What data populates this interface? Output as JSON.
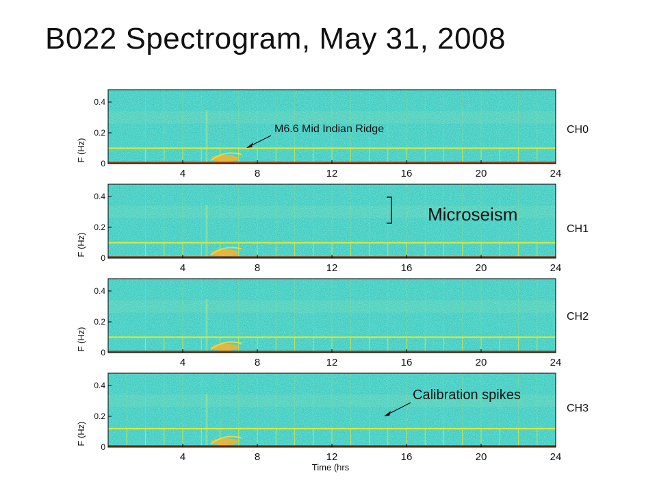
{
  "title": "B022 Spectrogram, May 31, 2008",
  "annotations": {
    "earthquake": "M6.6 Mid Indian Ridge",
    "microseism": "Microseism",
    "calibration": "Calibration spikes"
  },
  "colors": {
    "background": "#3cc8bd",
    "speckle_dark": "#2aa8e0",
    "speckle_light": "#7be5a8",
    "calibration_line": "#d9e83a",
    "event": "#f2b233",
    "baseline": "#8a3a1a"
  },
  "chart_data": [
    {
      "type": "heatmap",
      "channel": "CH0",
      "xlabel": "",
      "ylabel": "F (Hz)",
      "xlim": [
        0,
        24
      ],
      "ylim": [
        0,
        0.48
      ],
      "xticks": [
        4,
        8,
        12,
        16,
        20,
        24
      ],
      "yticks": [
        0,
        0.2,
        0.4
      ],
      "calibration_line_freq": 0.1,
      "event_time": [
        5.5,
        7.0
      ],
      "calibration_spike_times": [
        2,
        3,
        4,
        5,
        6,
        7,
        8,
        9,
        10,
        11,
        12,
        13,
        14,
        15,
        16,
        17,
        18,
        19,
        20,
        21,
        22,
        23
      ]
    },
    {
      "type": "heatmap",
      "channel": "CH1",
      "xlabel": "",
      "ylabel": "F (Hz)",
      "xlim": [
        0,
        24
      ],
      "ylim": [
        0,
        0.48
      ],
      "xticks": [
        4,
        8,
        12,
        16,
        20,
        24
      ],
      "yticks": [
        0,
        0.2,
        0.4
      ],
      "calibration_line_freq": 0.1,
      "event_time": [
        5.5,
        7.0
      ],
      "calibration_spike_times": [
        2,
        3,
        4,
        5,
        6,
        7,
        8,
        9,
        10,
        11,
        12,
        13,
        14,
        15,
        16,
        17,
        18,
        19,
        20,
        21,
        22,
        23
      ]
    },
    {
      "type": "heatmap",
      "channel": "CH2",
      "xlabel": "",
      "ylabel": "F (Hz)",
      "xlim": [
        0,
        24
      ],
      "ylim": [
        0,
        0.48
      ],
      "xticks": [
        4,
        8,
        12,
        16,
        20,
        24
      ],
      "yticks": [
        0,
        0.2,
        0.4
      ],
      "calibration_line_freq": 0.1,
      "event_time": [
        5.5,
        7.0
      ],
      "calibration_spike_times": [
        2,
        3,
        4,
        5,
        6,
        7,
        8,
        9,
        10,
        11,
        12,
        13,
        14,
        15,
        16,
        17,
        18,
        19,
        20,
        21,
        22,
        23
      ]
    },
    {
      "type": "heatmap",
      "channel": "CH3",
      "xlabel": "Time (hrs",
      "ylabel": "F (Hz)",
      "xlim": [
        0,
        24
      ],
      "ylim": [
        0,
        0.48
      ],
      "xticks": [
        4,
        8,
        12,
        16,
        20,
        24
      ],
      "yticks": [
        0,
        0.2,
        0.4
      ],
      "calibration_line_freq": 0.12,
      "event_time": [
        5.5,
        7.0
      ],
      "calibration_spike_times": [
        1,
        2,
        3,
        4,
        5,
        6,
        7,
        8,
        9,
        10,
        11,
        12,
        13,
        14,
        15,
        16,
        17,
        18,
        19,
        20,
        21,
        22,
        23
      ]
    }
  ]
}
